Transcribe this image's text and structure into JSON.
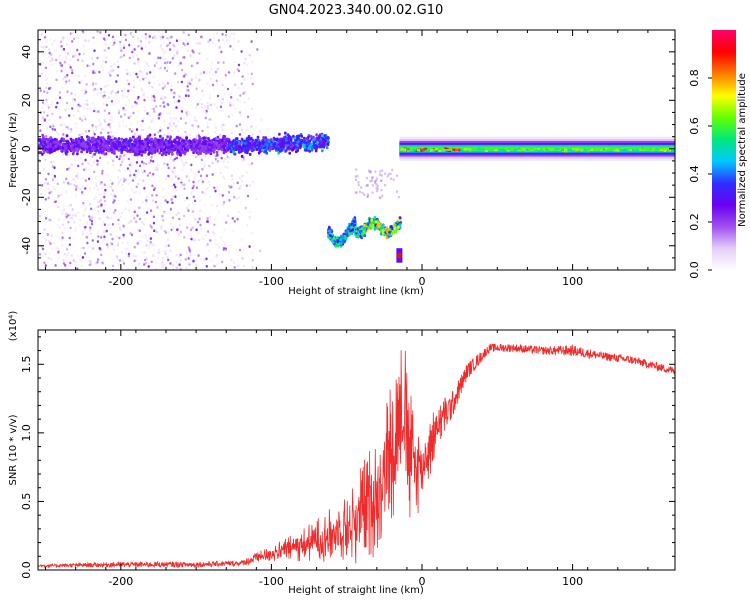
{
  "figure": {
    "title": "GN04.2023.340.00.02.G10",
    "colorbar": {
      "label": "Normalized spectral amplitude",
      "range": [
        0,
        1
      ],
      "ticks": [
        0.0,
        0.2,
        0.4,
        0.6,
        0.8
      ],
      "tick_labels": [
        "0.0",
        "0.2",
        "0.4",
        "0.6",
        "0.8"
      ],
      "palette": [
        "#ffffff",
        "#e4cff8",
        "#a050f0",
        "#6a00f0",
        "#3030ff",
        "#00c8ff",
        "#00e87c",
        "#64ff00",
        "#ffff00",
        "#ff7c00",
        "#ff0000",
        "#ff006a"
      ]
    }
  },
  "chart_data": [
    {
      "type": "heatmap",
      "title": "",
      "xlabel": "Height of straight line (km)",
      "ylabel": "Frequency (Hz)",
      "xlim": [
        -255,
        168
      ],
      "ylim": [
        -50,
        49
      ],
      "xticks": [
        -200,
        -100,
        0,
        100
      ],
      "xtick_labels": [
        "-200",
        "-100",
        "0",
        "100"
      ],
      "yticks": [
        -40,
        -20,
        0,
        20,
        40
      ],
      "ytick_labels": [
        "-40",
        "-20",
        "0",
        "20",
        "40"
      ],
      "grid": false,
      "features": [
        {
          "name": "scattered noise",
          "x": [
            -255,
            -120
          ],
          "y": [
            -50,
            49
          ],
          "amplitude": 0.1
        },
        {
          "name": "band near 0 Hz",
          "x": [
            -255,
            -63
          ],
          "y_center": 2,
          "width": 8,
          "amplitude": [
            0.2,
            0.35
          ]
        },
        {
          "name": "segment near -32 Hz",
          "x": [
            -63,
            -15
          ],
          "y_center": -31,
          "width": 6,
          "amplitude": [
            0.3,
            0.8
          ]
        },
        {
          "name": "spot near -44 Hz",
          "x": [
            -17,
            -13
          ],
          "y_center": -44,
          "amplitude": 0.9
        },
        {
          "name": "steady tone near 0 Hz",
          "x": [
            -15,
            168
          ],
          "y_center": 0,
          "width": 3,
          "amplitude": [
            0.5,
            0.95
          ]
        }
      ]
    },
    {
      "type": "line",
      "title": "",
      "xlabel": "Height of straight line (km)",
      "ylabel": "SNR (10 * v/v)",
      "y_multiplier": "(x10⁴)",
      "xlim": [
        -255,
        168
      ],
      "ylim": [
        0,
        1.75
      ],
      "xticks": [
        -200,
        -100,
        0,
        100
      ],
      "xtick_labels": [
        "-200",
        "-100",
        "0",
        "100"
      ],
      "yticks": [
        0.0,
        0.5,
        1.0,
        1.5
      ],
      "ytick_labels": [
        "0.0",
        "0.5",
        "1.0",
        "1.5"
      ],
      "grid": false,
      "series": [
        {
          "color": "#ee2c2c",
          "x": [
            -255,
            -200,
            -150,
            -120,
            -100,
            -80,
            -60,
            -45,
            -30,
            -20,
            -12,
            -8,
            0,
            10,
            20,
            30,
            45,
            60,
            80,
            100,
            120,
            140,
            168
          ],
          "y": [
            0.03,
            0.04,
            0.04,
            0.05,
            0.12,
            0.18,
            0.26,
            0.35,
            0.55,
            0.9,
            1.2,
            0.8,
            0.75,
            1.05,
            1.2,
            1.45,
            1.62,
            1.62,
            1.6,
            1.6,
            1.56,
            1.53,
            1.45
          ],
          "scatter": [
            0.01,
            0.02,
            0.02,
            0.02,
            0.06,
            0.12,
            0.2,
            0.32,
            0.45,
            0.55,
            0.55,
            0.5,
            0.3,
            0.18,
            0.1,
            0.06,
            0.03,
            0.03,
            0.03,
            0.04,
            0.03,
            0.03,
            0.03
          ]
        }
      ]
    }
  ]
}
